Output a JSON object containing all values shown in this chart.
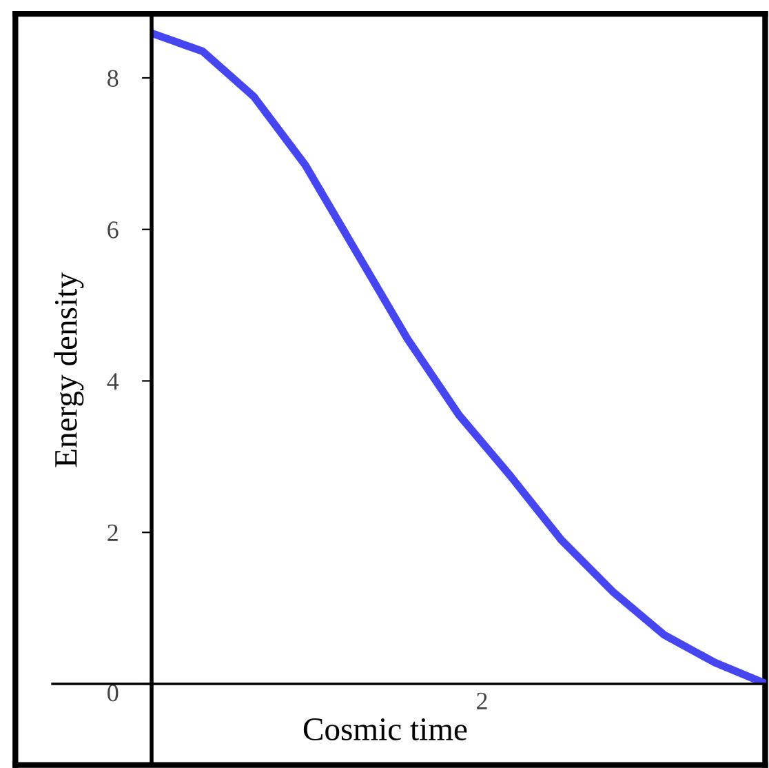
{
  "chart_data": {
    "type": "line",
    "xlabel": "Cosmic time",
    "ylabel": "Energy density",
    "categories": [
      null,
      null,
      null,
      null,
      null,
      null,
      null,
      null,
      null,
      null,
      null,
      null,
      null
    ],
    "series": [
      {
        "color": "#4646f0",
        "values": [
          8.59,
          8.35,
          7.75,
          6.85,
          5.7,
          4.55,
          3.55,
          2.75,
          1.9,
          1.22,
          0.65,
          0.28,
          0
        ]
      }
    ],
    "ylim": [
      0,
      8.81
    ],
    "yticks": [
      0,
      2,
      4,
      6,
      8
    ],
    "annotations": [
      "2"
    ],
    "grid": false,
    "legend": false,
    "marker": "none",
    "line_style": "solid"
  }
}
